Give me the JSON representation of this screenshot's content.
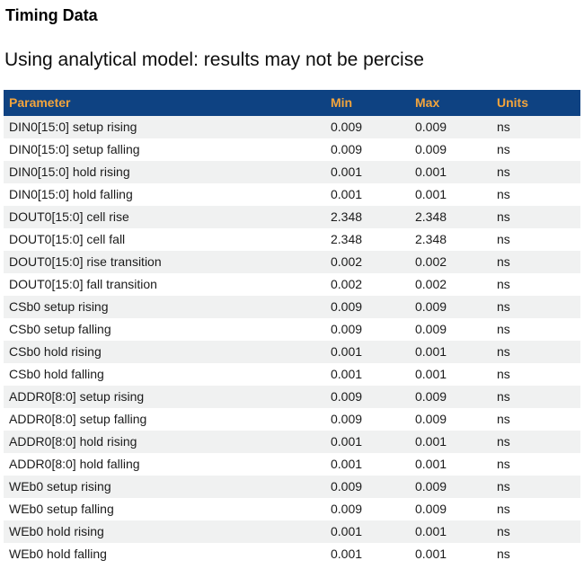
{
  "page": {
    "title": "Timing Data",
    "subtitle": "Using analytical model: results may not be percise"
  },
  "colors": {
    "header_bg": "#0e4282",
    "header_text": "#f2a43c",
    "row_alt_bg": "#f0f1f1",
    "body_text": "#1b1b1b"
  },
  "table": {
    "columns": [
      "Parameter",
      "Min",
      "Max",
      "Units"
    ],
    "rows": [
      {
        "parameter": "DIN0[15:0] setup rising",
        "min": "0.009",
        "max": "0.009",
        "units": "ns"
      },
      {
        "parameter": "DIN0[15:0] setup falling",
        "min": "0.009",
        "max": "0.009",
        "units": "ns"
      },
      {
        "parameter": "DIN0[15:0] hold rising",
        "min": "0.001",
        "max": "0.001",
        "units": "ns"
      },
      {
        "parameter": "DIN0[15:0] hold falling",
        "min": "0.001",
        "max": "0.001",
        "units": "ns"
      },
      {
        "parameter": "DOUT0[15:0] cell rise",
        "min": "2.348",
        "max": "2.348",
        "units": "ns"
      },
      {
        "parameter": "DOUT0[15:0] cell fall",
        "min": "2.348",
        "max": "2.348",
        "units": "ns"
      },
      {
        "parameter": "DOUT0[15:0] rise transition",
        "min": "0.002",
        "max": "0.002",
        "units": "ns"
      },
      {
        "parameter": "DOUT0[15:0] fall transition",
        "min": "0.002",
        "max": "0.002",
        "units": "ns"
      },
      {
        "parameter": "CSb0 setup rising",
        "min": "0.009",
        "max": "0.009",
        "units": "ns"
      },
      {
        "parameter": "CSb0 setup falling",
        "min": "0.009",
        "max": "0.009",
        "units": "ns"
      },
      {
        "parameter": "CSb0 hold rising",
        "min": "0.001",
        "max": "0.001",
        "units": "ns"
      },
      {
        "parameter": "CSb0 hold falling",
        "min": "0.001",
        "max": "0.001",
        "units": "ns"
      },
      {
        "parameter": "ADDR0[8:0] setup rising",
        "min": "0.009",
        "max": "0.009",
        "units": "ns"
      },
      {
        "parameter": "ADDR0[8:0] setup falling",
        "min": "0.009",
        "max": "0.009",
        "units": "ns"
      },
      {
        "parameter": "ADDR0[8:0] hold rising",
        "min": "0.001",
        "max": "0.001",
        "units": "ns"
      },
      {
        "parameter": "ADDR0[8:0] hold falling",
        "min": "0.001",
        "max": "0.001",
        "units": "ns"
      },
      {
        "parameter": "WEb0 setup rising",
        "min": "0.009",
        "max": "0.009",
        "units": "ns"
      },
      {
        "parameter": "WEb0 setup falling",
        "min": "0.009",
        "max": "0.009",
        "units": "ns"
      },
      {
        "parameter": "WEb0 hold rising",
        "min": "0.001",
        "max": "0.001",
        "units": "ns"
      },
      {
        "parameter": "WEb0 hold falling",
        "min": "0.001",
        "max": "0.001",
        "units": "ns"
      }
    ]
  }
}
